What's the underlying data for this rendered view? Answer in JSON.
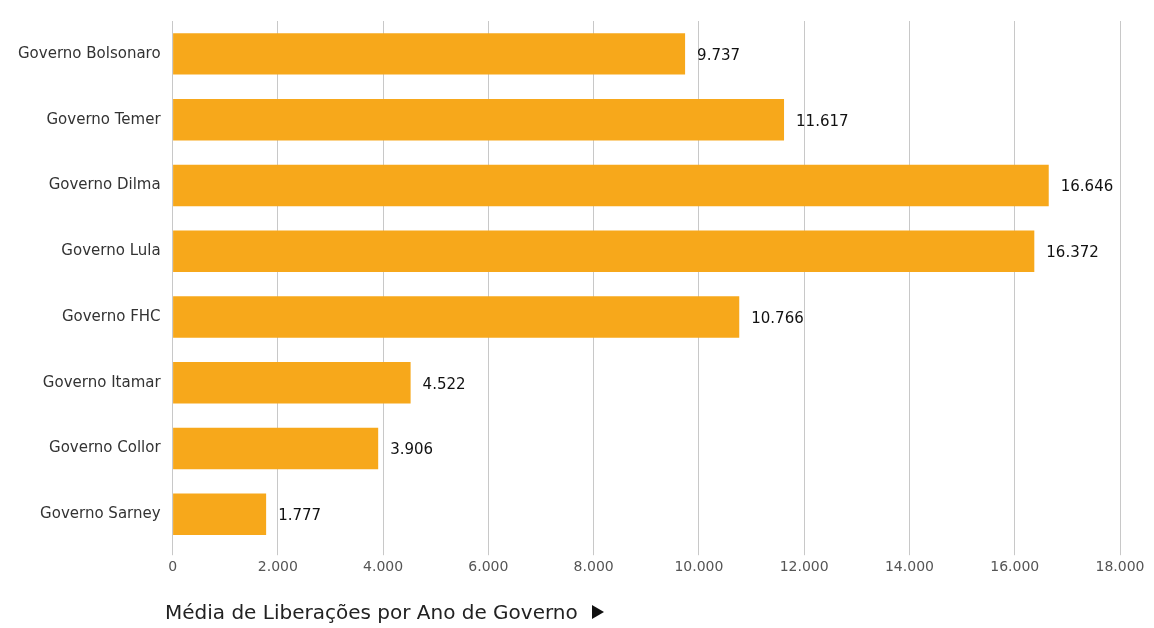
{
  "chart_data": {
    "type": "bar",
    "orientation": "horizontal",
    "xlabel": "Média de Liberações por Ano de Governo",
    "categories": [
      "Governo Bolsonaro",
      "Governo Temer",
      "Governo Dilma",
      "Governo Lula",
      "Governo FHC",
      "Governo Itamar",
      "Governo Collor",
      "Governo Sarney"
    ],
    "values": [
      9737,
      11617,
      16646,
      16372,
      10766,
      4522,
      3906,
      1777
    ],
    "value_labels": [
      "9.737",
      "11.617",
      "16.646",
      "16.372",
      "10.766",
      "4.522",
      "3.906",
      "1.777"
    ],
    "color": "#f7a81b",
    "xlim": [
      0,
      18000
    ],
    "xticks": [
      0,
      {
        "value": 2000,
        "label": "2.000"
      },
      {
        "value": 4000,
        "label": "4.000"
      },
      {
        "value": 6000,
        "label": "6.000"
      },
      {
        "value": 8000,
        "label": "8.000"
      },
      {
        "value": 10000,
        "label": "10.000"
      },
      {
        "value": 12000,
        "label": "12.000"
      },
      {
        "value": 14000,
        "label": "14.000"
      },
      {
        "value": 16000,
        "label": "16.000"
      },
      {
        "value": 18000,
        "label": "18.000"
      }
    ],
    "grid": "x",
    "legend": false
  }
}
